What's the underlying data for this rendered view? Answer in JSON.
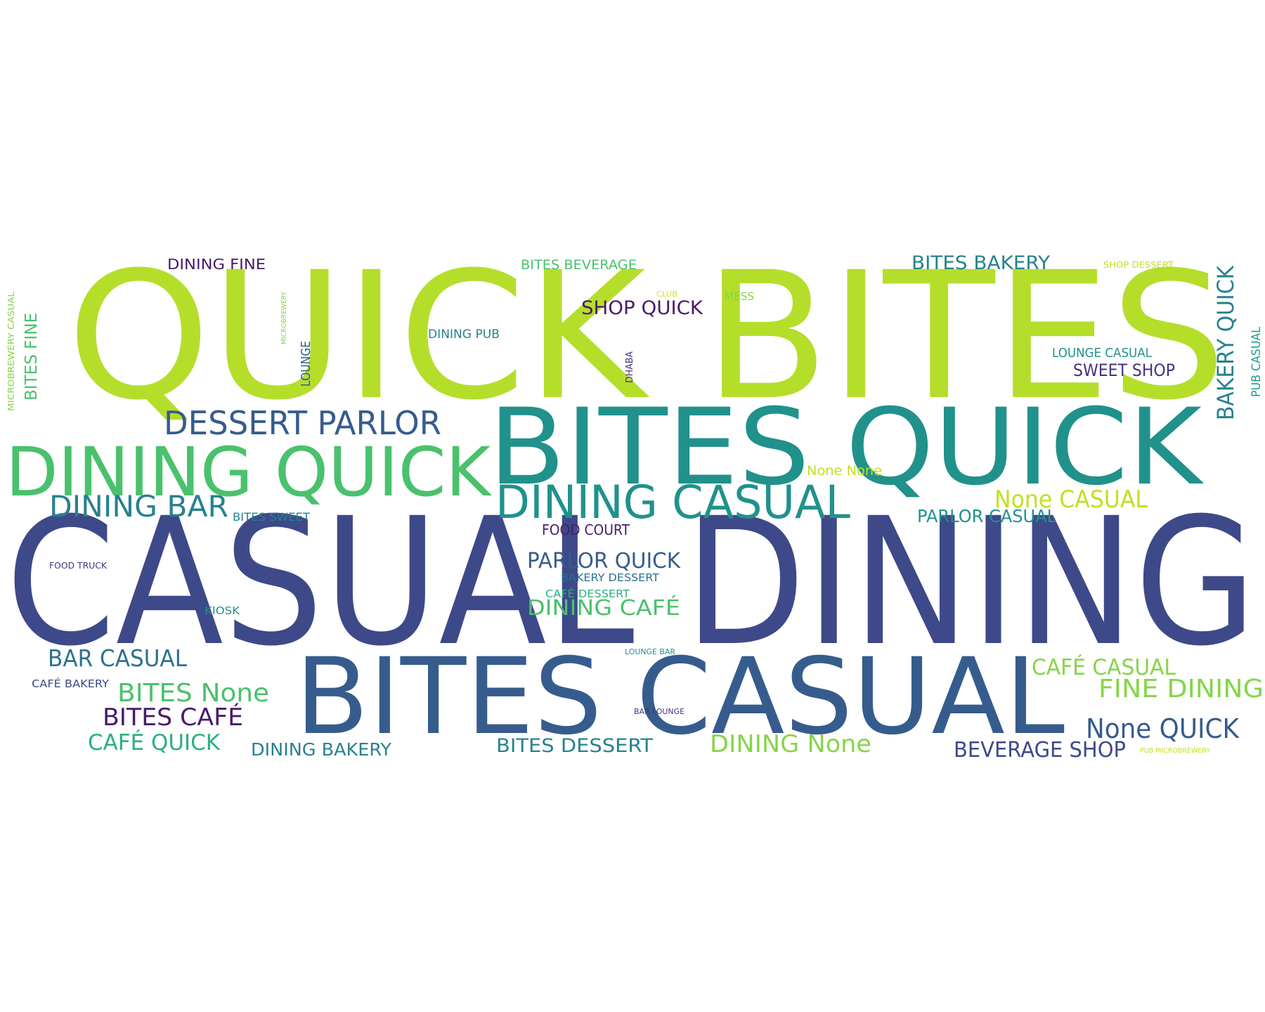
{
  "palette": {
    "lime": "#b5de2b",
    "yellow_green": "#c2df23",
    "bright_green": "#86d549",
    "green": "#4ac16d",
    "sea_green": "#2ab07f",
    "teal": "#1f9e89",
    "cyan_teal": "#21918c",
    "blue_teal": "#26828e",
    "steel_blue": "#2c728e",
    "slate_blue": "#365c8d",
    "indigo": "#3e4989",
    "dark_indigo": "#46327e",
    "dark_purple": "#481a6c",
    "gold": "#d8e219",
    "background": "#ffffff"
  },
  "words": [
    {
      "text": "QUICK BITES",
      "color": "lime",
      "weight": 1.0
    },
    {
      "text": "CASUAL DINING",
      "color": "indigo",
      "weight": 0.98
    },
    {
      "text": "BITES QUICK",
      "color": "cyan_teal",
      "weight": 0.72
    },
    {
      "text": "BITES CASUAL",
      "color": "slate_blue",
      "weight": 0.7
    },
    {
      "text": "DINING QUICK",
      "color": "green",
      "weight": 0.5
    },
    {
      "text": "DINING CASUAL",
      "color": "cyan_teal",
      "weight": 0.36
    },
    {
      "text": "DESSERT PARLOR",
      "color": "slate_blue",
      "weight": 0.3
    },
    {
      "text": "DINING BAR",
      "color": "blue_teal",
      "weight": 0.26
    },
    {
      "text": "BAKERY QUICK",
      "color": "blue_teal",
      "weight": 0.22
    },
    {
      "text": "None QUICK",
      "color": "slate_blue",
      "weight": 0.24
    },
    {
      "text": "BITES None",
      "color": "green",
      "weight": 0.23
    },
    {
      "text": "FINE DINING",
      "color": "bright_green",
      "weight": 0.23
    },
    {
      "text": "BITES CAFÉ",
      "color": "dark_purple",
      "weight": 0.22
    },
    {
      "text": "BAR CASUAL",
      "color": "steel_blue",
      "weight": 0.22
    },
    {
      "text": "None CASUAL",
      "color": "yellow_green",
      "weight": 0.22
    },
    {
      "text": "DINING None",
      "color": "bright_green",
      "weight": 0.22
    },
    {
      "text": "CAFÉ CASUAL",
      "color": "bright_green",
      "weight": 0.21
    },
    {
      "text": "CAFÉ QUICK",
      "color": "sea_green",
      "weight": 0.21
    },
    {
      "text": "PARLOR QUICK",
      "color": "slate_blue",
      "weight": 0.21
    },
    {
      "text": "BEVERAGE SHOP",
      "color": "indigo",
      "weight": 0.21
    },
    {
      "text": "DINING CAFÉ",
      "color": "green",
      "weight": 0.21
    },
    {
      "text": "BITES BAKERY",
      "color": "blue_teal",
      "weight": 0.19
    },
    {
      "text": "SHOP QUICK",
      "color": "dark_purple",
      "weight": 0.19
    },
    {
      "text": "BITES DESSERT",
      "color": "blue_teal",
      "weight": 0.19
    },
    {
      "text": "DINING BAKERY",
      "color": "blue_teal",
      "weight": 0.18
    },
    {
      "text": "PARLOR CASUAL",
      "color": "cyan_teal",
      "weight": 0.18
    },
    {
      "text": "SWEET SHOP",
      "color": "dark_indigo",
      "weight": 0.17
    },
    {
      "text": "BITES FINE",
      "color": "green",
      "weight": 0.16
    },
    {
      "text": "DINING FINE",
      "color": "dark_purple",
      "weight": 0.15
    },
    {
      "text": "FOOD COURT",
      "color": "dark_purple",
      "weight": 0.15
    },
    {
      "text": "BITES BEVERAGE",
      "color": "green",
      "weight": 0.14
    },
    {
      "text": "LOUNGE CASUAL",
      "color": "cyan_teal",
      "weight": 0.14
    },
    {
      "text": "None None",
      "color": "yellow_green",
      "weight": 0.14
    },
    {
      "text": "DINING PUB",
      "color": "blue_teal",
      "weight": 0.13
    },
    {
      "text": "LOUNGE",
      "color": "slate_blue",
      "weight": 0.13
    },
    {
      "text": "BITES SWEET",
      "color": "blue_teal",
      "weight": 0.13
    },
    {
      "text": "PUB CASUAL",
      "color": "teal",
      "weight": 0.12
    },
    {
      "text": "MESS",
      "color": "bright_green",
      "weight": 0.12
    },
    {
      "text": "BAKERY DESSERT",
      "color": "steel_blue",
      "weight": 0.12
    },
    {
      "text": "CAFÉ DESSERT",
      "color": "sea_green",
      "weight": 0.12
    },
    {
      "text": "CAFÉ BAKERY",
      "color": "indigo",
      "weight": 0.12
    },
    {
      "text": "KIOSK",
      "color": "cyan_teal",
      "weight": 0.12
    },
    {
      "text": "MICROBREWERY CASUAL",
      "color": "bright_green",
      "weight": 0.1
    },
    {
      "text": "DHABA",
      "color": "dark_indigo",
      "weight": 0.1
    },
    {
      "text": "SHOP DESSERT",
      "color": "yellow_green",
      "weight": 0.09
    },
    {
      "text": "FOOD TRUCK",
      "color": "dark_indigo",
      "weight": 0.09
    },
    {
      "text": "CLUB",
      "color": "gold",
      "weight": 0.08
    },
    {
      "text": "MICROBREWERY",
      "color": "bright_green",
      "weight": 0.07
    },
    {
      "text": "LOUNGE BAR",
      "color": "cyan_teal",
      "weight": 0.08
    },
    {
      "text": "BAR LOUNGE",
      "color": "dark_indigo",
      "weight": 0.08
    },
    {
      "text": "PUB MICROBREWERY",
      "color": "yellow_green",
      "weight": 0.07
    }
  ]
}
